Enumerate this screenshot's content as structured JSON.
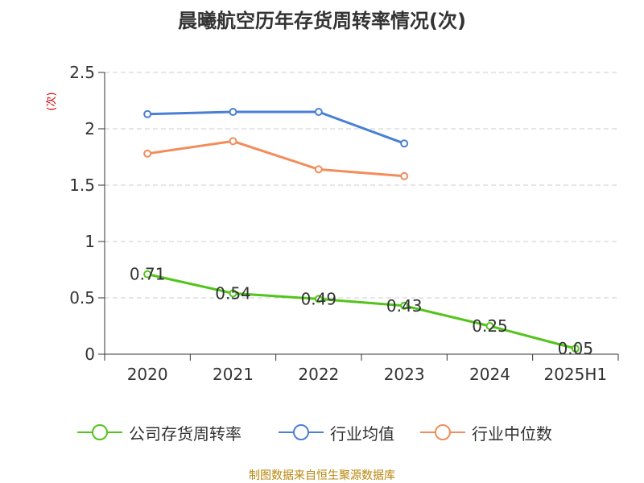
{
  "chart_data": {
    "type": "line",
    "title": "晨曦航空历年存货周转率情况(次)",
    "ylabel": "(次)",
    "xlabel": "",
    "categories": [
      "2020",
      "2021",
      "2022",
      "2023",
      "2024",
      "2025H1"
    ],
    "ylim": [
      0,
      2.5
    ],
    "yticks": [
      "0",
      "0.5",
      "1",
      "1.5",
      "2",
      "2.5"
    ],
    "grid": "horizontal dashed",
    "legend_position": "bottom",
    "series": [
      {
        "name": "公司存货周转率",
        "color": "#52c41a",
        "values": [
          0.71,
          0.54,
          0.49,
          0.43,
          0.25,
          0.05
        ],
        "labels": [
          "0.71",
          "0.54",
          "0.49",
          "0.43",
          "0.25",
          "0.05"
        ]
      },
      {
        "name": "行业均值",
        "color": "#4a7fd6",
        "values": [
          2.13,
          2.15,
          2.15,
          1.87,
          null,
          null
        ]
      },
      {
        "name": "行业中位数",
        "color": "#f28c5a",
        "values": [
          1.78,
          1.89,
          1.64,
          1.58,
          null,
          null
        ]
      }
    ],
    "source": "制图数据来自恒生聚源数据库"
  },
  "colors": {
    "axis": "#333333",
    "grid": "#cccccc",
    "ylabel": "#cc0000",
    "source": "#b8860b"
  }
}
